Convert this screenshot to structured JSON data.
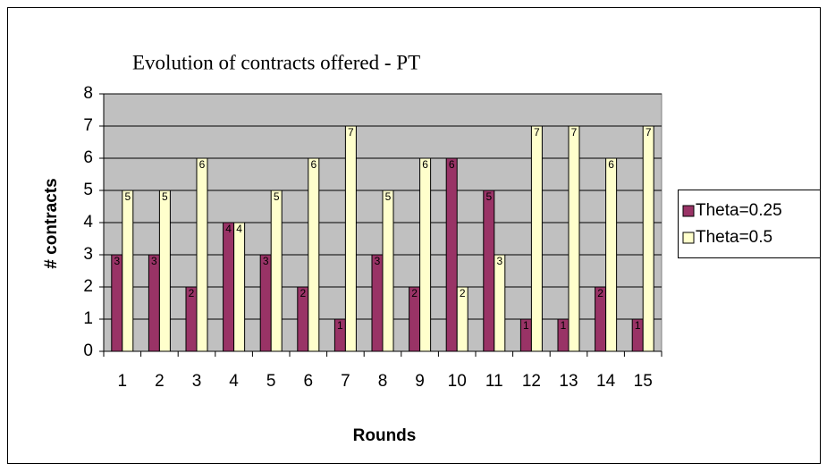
{
  "chart_data": {
    "type": "bar",
    "title": "Evolution of contracts offered - PT",
    "x_label": "Rounds",
    "y_label": "# contracts",
    "categories": [
      "1",
      "2",
      "3",
      "4",
      "5",
      "6",
      "7",
      "8",
      "9",
      "10",
      "11",
      "12",
      "13",
      "14",
      "15"
    ],
    "series": [
      {
        "name": "Theta=0.25",
        "color": "#993366",
        "values": [
          3,
          3,
          2,
          4,
          3,
          2,
          1,
          3,
          2,
          6,
          5,
          1,
          1,
          2,
          1
        ]
      },
      {
        "name": "Theta=0.5",
        "color": "#ffffcc",
        "values": [
          5,
          5,
          6,
          4,
          5,
          6,
          7,
          5,
          6,
          2,
          3,
          7,
          7,
          6,
          7
        ]
      }
    ],
    "ylim": [
      0,
      8
    ],
    "yticks": [
      0,
      1,
      2,
      3,
      4,
      5,
      6,
      7,
      8
    ],
    "grid": true,
    "legend": "right"
  }
}
